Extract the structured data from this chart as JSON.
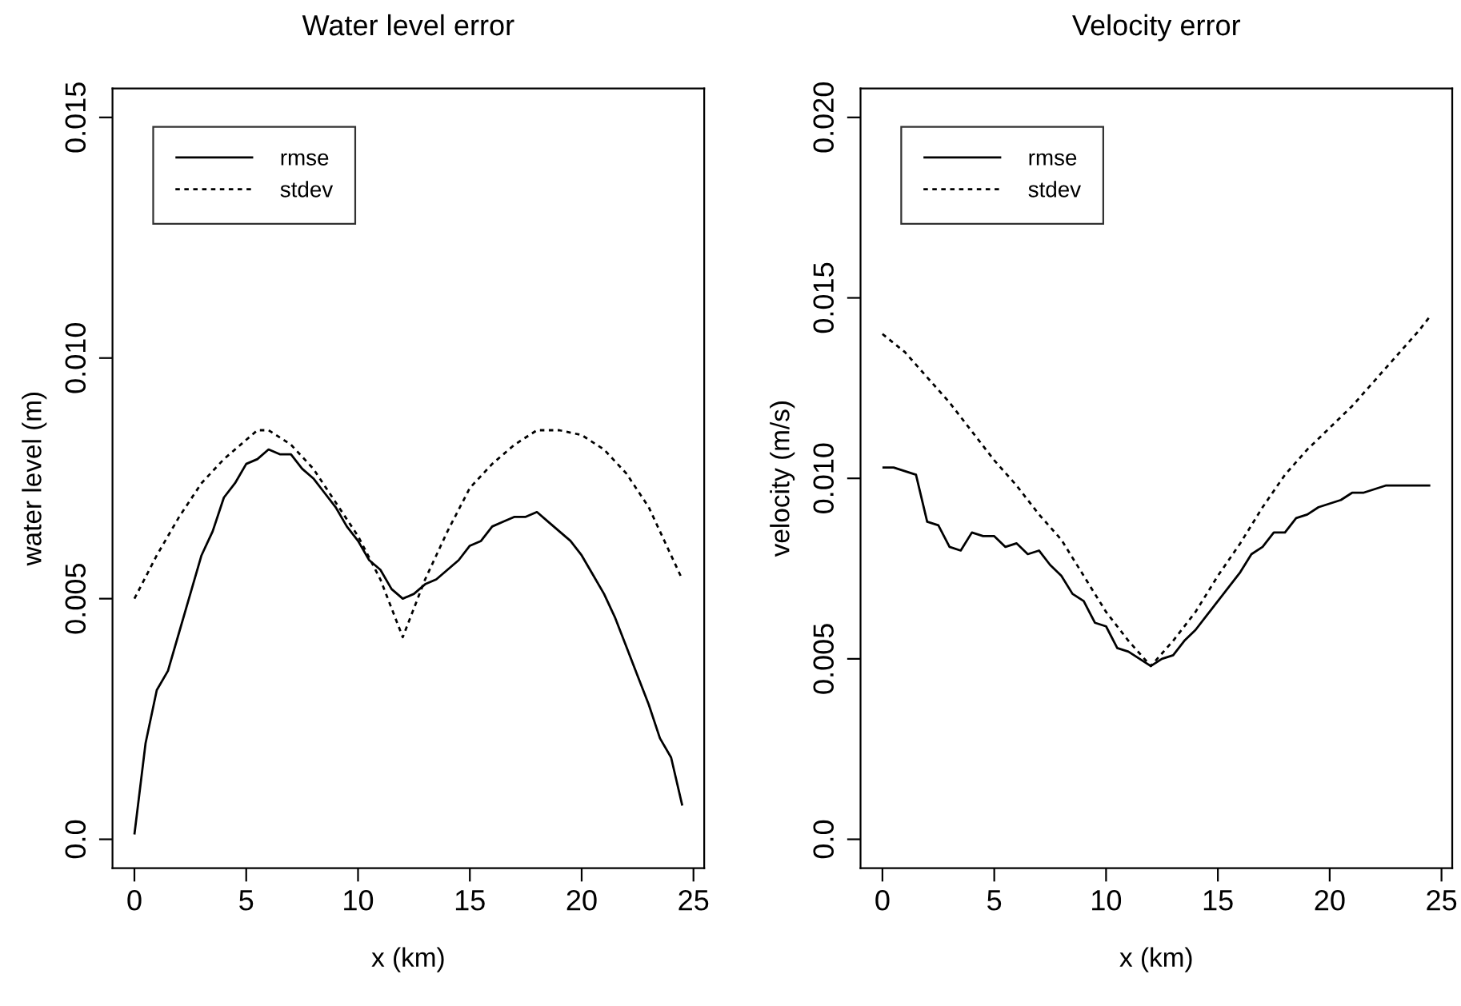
{
  "chart_data": [
    {
      "type": "line",
      "title": "Water level error",
      "xlabel": "x (km)",
      "ylabel": "water level (m)",
      "xlim": [
        -0.98,
        25.48
      ],
      "ylim": [
        -0.0006,
        0.0156
      ],
      "xticks": [
        0,
        5,
        10,
        15,
        20,
        25
      ],
      "yticks": [
        {
          "value": 0,
          "label": "0.0"
        },
        {
          "value": 0.005,
          "label": "0.005"
        },
        {
          "value": 0.01,
          "label": "0.010"
        },
        {
          "value": 0.015,
          "label": "0.015"
        }
      ],
      "grid": false,
      "legend": "top left",
      "series": [
        {
          "name": "rmse",
          "color": "#000000",
          "line_style": "solid",
          "x": [
            0,
            0.5,
            1,
            1.5,
            2,
            2.5,
            3,
            3.5,
            4,
            4.5,
            5,
            5.5,
            6,
            6.5,
            7,
            7.5,
            8,
            8.5,
            9,
            9.5,
            10,
            10.5,
            11,
            11.5,
            12,
            12.5,
            13,
            13.5,
            14,
            14.5,
            15,
            15.5,
            16,
            16.5,
            17,
            17.5,
            18,
            18.5,
            19,
            19.5,
            20,
            20.5,
            21,
            21.5,
            22,
            22.5,
            23,
            23.5,
            24,
            24.5
          ],
          "values": [
            0.0001,
            0.002,
            0.0031,
            0.0035,
            0.0043,
            0.0051,
            0.0059,
            0.0064,
            0.0071,
            0.0074,
            0.0078,
            0.0079,
            0.0081,
            0.008,
            0.008,
            0.0077,
            0.0075,
            0.0072,
            0.0069,
            0.0065,
            0.0062,
            0.0058,
            0.0056,
            0.0052,
            0.005,
            0.0051,
            0.0053,
            0.0054,
            0.0056,
            0.0058,
            0.0061,
            0.0062,
            0.0065,
            0.0066,
            0.0067,
            0.0067,
            0.0068,
            0.0066,
            0.0064,
            0.0062,
            0.0059,
            0.0055,
            0.0051,
            0.0046,
            0.004,
            0.0034,
            0.0028,
            0.0021,
            0.0017,
            0.0007
          ]
        },
        {
          "name": "stdev",
          "color": "#000000",
          "line_style": "dotted",
          "x": [
            0,
            1,
            2,
            3,
            4,
            5,
            5.5,
            6,
            7,
            8,
            9,
            10,
            11,
            12,
            13,
            14,
            15,
            16,
            17,
            18,
            19,
            20,
            21,
            22,
            23,
            24,
            24.5
          ],
          "values": [
            0.005,
            0.0059,
            0.0067,
            0.0074,
            0.0079,
            0.0083,
            0.0085,
            0.0085,
            0.0082,
            0.0077,
            0.007,
            0.0063,
            0.0054,
            0.0042,
            0.0054,
            0.0064,
            0.0073,
            0.0078,
            0.0082,
            0.0085,
            0.0085,
            0.0084,
            0.0081,
            0.0076,
            0.0069,
            0.0059,
            0.0054
          ]
        }
      ]
    },
    {
      "type": "line",
      "title": "Velocity error",
      "xlabel": "x (km)",
      "ylabel": "velocity (m/s)",
      "xlim": [
        -0.98,
        25.48
      ],
      "ylim": [
        -0.0008,
        0.0208
      ],
      "xticks": [
        0,
        5,
        10,
        15,
        20,
        25
      ],
      "yticks": [
        {
          "value": 0,
          "label": "0.0"
        },
        {
          "value": 0.005,
          "label": "0.005"
        },
        {
          "value": 0.01,
          "label": "0.010"
        },
        {
          "value": 0.015,
          "label": "0.015"
        },
        {
          "value": 0.02,
          "label": "0.020"
        }
      ],
      "grid": false,
      "legend": "top left",
      "series": [
        {
          "name": "rmse",
          "color": "#000000",
          "line_style": "solid",
          "x": [
            0,
            0.5,
            1,
            1.5,
            2,
            2.5,
            3,
            3.5,
            4,
            4.5,
            5,
            5.5,
            6,
            6.5,
            7,
            7.5,
            8,
            8.5,
            9,
            9.5,
            10,
            10.5,
            11,
            11.5,
            12,
            12.5,
            13,
            13.5,
            14,
            14.5,
            15,
            15.5,
            16,
            16.5,
            17,
            17.5,
            18,
            18.5,
            19,
            19.5,
            20,
            20.5,
            21,
            21.5,
            22,
            22.5,
            23,
            23.5,
            24,
            24.5
          ],
          "values": [
            0.0103,
            0.0103,
            0.0102,
            0.0101,
            0.0088,
            0.0087,
            0.0081,
            0.008,
            0.0085,
            0.0084,
            0.0084,
            0.0081,
            0.0082,
            0.0079,
            0.008,
            0.0076,
            0.0073,
            0.0068,
            0.0066,
            0.006,
            0.0059,
            0.0053,
            0.0052,
            0.005,
            0.0048,
            0.005,
            0.0051,
            0.0055,
            0.0058,
            0.0062,
            0.0066,
            0.007,
            0.0074,
            0.0079,
            0.0081,
            0.0085,
            0.0085,
            0.0089,
            0.009,
            0.0092,
            0.0093,
            0.0094,
            0.0096,
            0.0096,
            0.0097,
            0.0098,
            0.0098,
            0.0098,
            0.0098,
            0.0098
          ]
        },
        {
          "name": "stdev",
          "color": "#000000",
          "line_style": "dotted",
          "x": [
            0,
            1,
            2,
            3,
            4,
            5,
            6,
            7,
            8,
            9,
            10,
            11,
            12,
            13,
            14,
            15,
            16,
            17,
            18,
            19,
            20,
            21,
            22,
            23,
            24,
            24.5
          ],
          "values": [
            0.014,
            0.0135,
            0.0128,
            0.0121,
            0.0113,
            0.0105,
            0.0098,
            0.009,
            0.0083,
            0.0073,
            0.0063,
            0.0055,
            0.0048,
            0.0055,
            0.0063,
            0.0073,
            0.0082,
            0.0092,
            0.0101,
            0.0108,
            0.0114,
            0.012,
            0.0127,
            0.0134,
            0.0141,
            0.0145
          ]
        }
      ]
    }
  ]
}
